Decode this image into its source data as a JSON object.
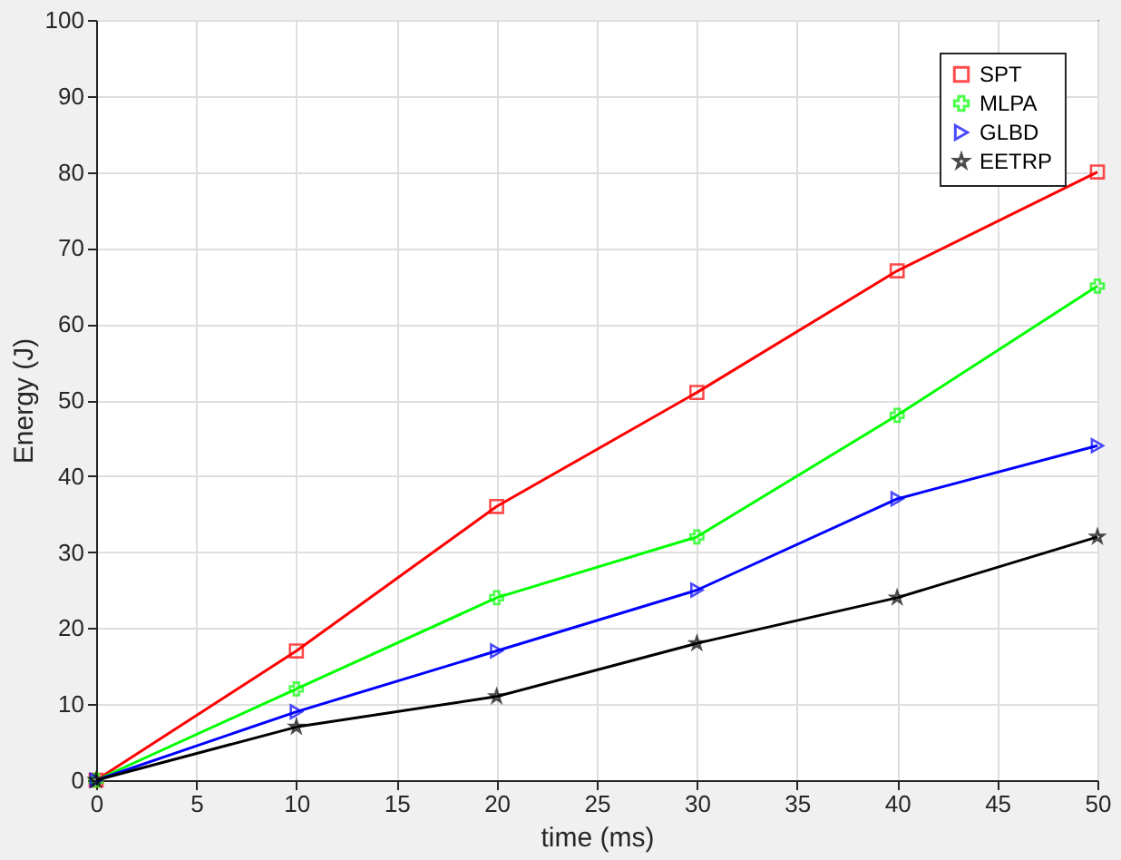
{
  "chart_data": {
    "type": "line",
    "xlabel": "time (ms)",
    "ylabel": "Energy (J)",
    "x": [
      0,
      10,
      20,
      30,
      40,
      50
    ],
    "series": [
      {
        "name": "SPT",
        "color": "#ff0000",
        "marker": "square",
        "values": [
          0,
          17,
          36,
          51,
          67,
          80
        ]
      },
      {
        "name": "MLPA",
        "color": "#00ff00",
        "marker": "cross",
        "values": [
          0,
          12,
          24,
          32,
          48,
          65
        ]
      },
      {
        "name": "GLBD",
        "color": "#0000ff",
        "marker": "triangle",
        "values": [
          0,
          9,
          17,
          25,
          37,
          44
        ]
      },
      {
        "name": "EETRP",
        "color": "#000000",
        "marker": "star",
        "values": [
          0,
          7,
          11,
          18,
          24,
          32
        ]
      }
    ],
    "xlim": [
      0,
      50
    ],
    "xticks": [
      0,
      5,
      10,
      15,
      20,
      25,
      30,
      35,
      40,
      45,
      50
    ],
    "ylim": [
      0,
      100
    ],
    "yticks": [
      0,
      10,
      20,
      30,
      40,
      50,
      60,
      70,
      80,
      90,
      100
    ],
    "grid": true,
    "legend": "top right",
    "line_style": "solid"
  }
}
